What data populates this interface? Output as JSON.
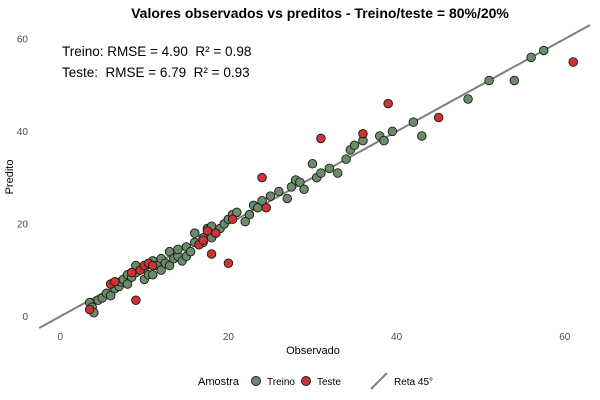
{
  "chart_data": {
    "type": "scatter",
    "title": "Valores observados vs preditos - Treino/teste = 80%/20%",
    "xlabel": "Observado",
    "ylabel": "Predito",
    "xlim": [
      -3,
      63
    ],
    "ylim": [
      -2.5,
      63
    ],
    "x_ticks": [
      0,
      20,
      40,
      60
    ],
    "y_ticks": [
      0,
      20,
      40,
      60
    ],
    "grid": false,
    "annotations": [
      "Treino: RMSE = 4.90  R² = 0.98",
      "Teste:  RMSE = 6.79  R² = 0.93"
    ],
    "reference_line": {
      "name": "Reta 45°",
      "slope": 1,
      "intercept": 0,
      "color": "#7f7f7f"
    },
    "legend": {
      "title": "Amostra",
      "placement": "bottom",
      "entries": [
        "Treino",
        "Teste",
        "Reta 45°"
      ]
    },
    "series": [
      {
        "name": "Treino",
        "color": "#6b8c69",
        "points": [
          [
            3.5,
            3
          ],
          [
            3.8,
            2
          ],
          [
            4,
            0.8
          ],
          [
            4.5,
            3.5
          ],
          [
            5,
            4
          ],
          [
            5.5,
            5
          ],
          [
            6,
            4.5
          ],
          [
            6.5,
            6
          ],
          [
            7,
            6.5
          ],
          [
            7.2,
            7.5
          ],
          [
            7.5,
            8
          ],
          [
            8,
            7
          ],
          [
            8,
            9
          ],
          [
            8.5,
            8.5
          ],
          [
            9,
            9.5
          ],
          [
            9,
            11
          ],
          [
            9.5,
            10
          ],
          [
            10,
            8
          ],
          [
            10,
            10.5
          ],
          [
            10.5,
            9
          ],
          [
            11,
            12
          ],
          [
            11,
            9
          ],
          [
            11.5,
            11
          ],
          [
            12,
            10
          ],
          [
            12,
            12.5
          ],
          [
            12.5,
            11.5
          ],
          [
            13,
            14
          ],
          [
            13,
            11
          ],
          [
            13.5,
            12.5
          ],
          [
            14,
            13
          ],
          [
            14,
            14.5
          ],
          [
            14.5,
            12
          ],
          [
            15,
            15
          ],
          [
            15,
            13
          ],
          [
            15.5,
            14
          ],
          [
            16,
            16
          ],
          [
            16,
            18
          ],
          [
            16.5,
            15.5
          ],
          [
            17,
            17
          ],
          [
            17,
            16
          ],
          [
            17.5,
            19
          ],
          [
            18,
            19.5
          ],
          [
            18,
            17
          ],
          [
            18.5,
            18
          ],
          [
            19,
            19
          ],
          [
            19.5,
            20
          ],
          [
            20,
            21
          ],
          [
            20.5,
            22
          ],
          [
            21,
            22.5
          ],
          [
            22,
            20.5
          ],
          [
            22.5,
            22
          ],
          [
            23,
            24
          ],
          [
            23.5,
            23.5
          ],
          [
            24,
            25
          ],
          [
            25,
            26
          ],
          [
            26,
            27
          ],
          [
            27,
            25.5
          ],
          [
            27.5,
            28
          ],
          [
            28,
            29.5
          ],
          [
            28.5,
            29
          ],
          [
            29,
            27.5
          ],
          [
            30,
            33
          ],
          [
            30.5,
            30
          ],
          [
            31,
            31
          ],
          [
            32,
            32
          ],
          [
            33,
            31
          ],
          [
            34,
            34
          ],
          [
            34.5,
            36
          ],
          [
            35,
            37
          ],
          [
            36,
            38
          ],
          [
            38,
            39
          ],
          [
            38.5,
            38
          ],
          [
            39.5,
            40
          ],
          [
            42,
            42
          ],
          [
            43,
            39
          ],
          [
            48.5,
            47
          ],
          [
            51,
            51
          ],
          [
            54,
            51
          ],
          [
            56,
            56
          ],
          [
            57.5,
            57.5
          ]
        ]
      },
      {
        "name": "Teste",
        "color": "#cd3333",
        "points": [
          [
            3.5,
            1.5
          ],
          [
            6,
            7
          ],
          [
            6.5,
            7.5
          ],
          [
            8.5,
            9.5
          ],
          [
            9,
            3.5
          ],
          [
            9.5,
            10
          ],
          [
            10,
            11
          ],
          [
            10.5,
            11.5
          ],
          [
            11,
            11
          ],
          [
            16.5,
            15.5
          ],
          [
            17,
            16.5
          ],
          [
            17.5,
            18.5
          ],
          [
            18,
            13.5
          ],
          [
            18.5,
            18
          ],
          [
            20,
            11.5
          ],
          [
            20.5,
            21
          ],
          [
            24,
            30
          ],
          [
            24.5,
            23.5
          ],
          [
            31,
            38.5
          ],
          [
            36,
            39.5
          ],
          [
            39,
            46
          ],
          [
            45,
            43
          ],
          [
            61,
            55
          ]
        ]
      }
    ]
  }
}
